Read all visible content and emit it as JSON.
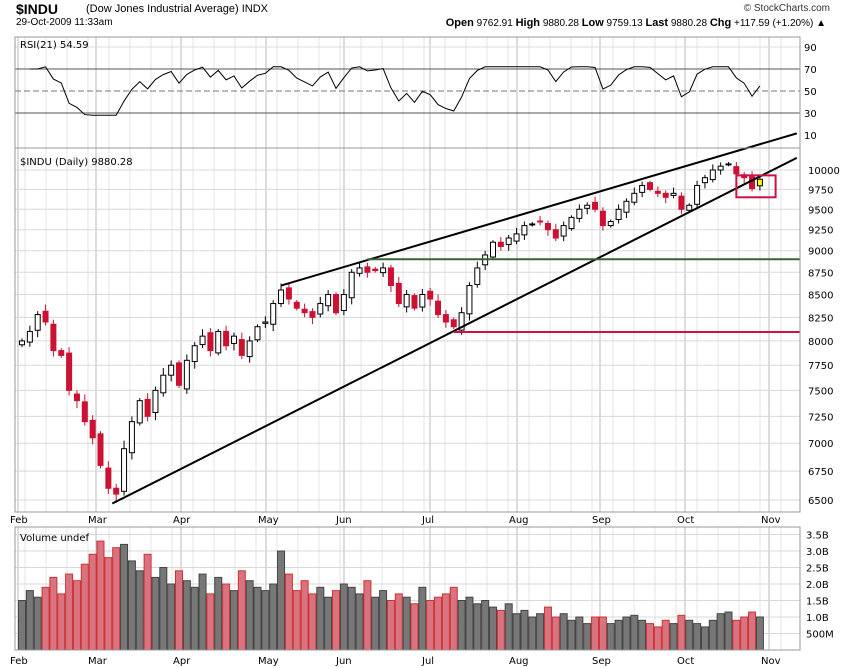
{
  "header": {
    "symbol": "$INDU",
    "name": "(Dow Jones Industrial Average) INDX",
    "brand": "© StockCharts.com",
    "datetime": "29-Oct-2009 11:33am",
    "open_label": "Open",
    "open": "9762.91",
    "high_label": "High",
    "high": "9880.28",
    "low_label": "Low",
    "low": "9759.13",
    "last_label": "Last",
    "last": "9880.28",
    "chg_label": "Chg",
    "chg": "+117.59 (+1.20%)",
    "chg_icon": "up-triangle"
  },
  "colors": {
    "up": "#ffffff",
    "down": "#cc1133",
    "grid": "#d8d8d8",
    "volume_up": "#777777",
    "volume_down": "#d9737f",
    "support": "#336633",
    "resistance": "#cc1144",
    "highlight": "#ffff00"
  },
  "chart_data": [
    {
      "type": "line",
      "title": "RSI(21) 54.59",
      "indicator": "RSI(21)",
      "last_value": 54.59,
      "yticks": [
        "90",
        "70",
        "50",
        "30",
        "10"
      ],
      "ylim": [
        10,
        90
      ]
    },
    {
      "type": "candlestick",
      "title": "$INDU (Daily) 9880.28",
      "scale": "log",
      "ylim": [
        6400,
        10600
      ],
      "yticks": [
        "10000",
        "9750",
        "9500",
        "9250",
        "9000",
        "8750",
        "8500",
        "8250",
        "8000",
        "7750",
        "7500",
        "7250",
        "7000",
        "6750",
        "6500"
      ],
      "xticks": [
        "Feb",
        "Mar",
        "Apr",
        "May",
        "Jun",
        "Jul",
        "Aug",
        "Sep",
        "Oct",
        "Nov"
      ],
      "sampling": "every 2 trading days",
      "closes": [
        8000,
        8100,
        8280,
        8200,
        7900,
        7850,
        7500,
        7400,
        7200,
        7050,
        6800,
        6600,
        6550,
        6950,
        7200,
        7400,
        7250,
        7500,
        7650,
        7750,
        7550,
        7800,
        7950,
        8050,
        7900,
        8100,
        7950,
        8050,
        7850,
        8000,
        8150,
        8200,
        8400,
        8550,
        8450,
        8350,
        8300,
        8250,
        8400,
        8500,
        8300,
        8500,
        8750,
        8800,
        8750,
        8770,
        8800,
        8600,
        8400,
        8500,
        8350,
        8500,
        8450,
        8280,
        8200,
        8150,
        8300,
        8600,
        8800,
        8950,
        9100,
        9050,
        9150,
        9200,
        9300,
        9320,
        9350,
        9250,
        9150,
        9300,
        9400,
        9500,
        9550,
        9500,
        9300,
        9350,
        9500,
        9600,
        9700,
        9800,
        9750,
        9700,
        9650,
        9700,
        9500,
        9550,
        9800,
        9900,
        10000,
        10050,
        10080,
        9950,
        9900,
        9760,
        9880
      ],
      "annotations": {
        "upper_trendline": [
          [
            33,
            8600
          ],
          [
            98.7,
            10490
          ]
        ],
        "lower_trendline": [
          [
            11.5,
            6470
          ],
          [
            98.7,
            10160
          ]
        ],
        "support_line": {
          "from_index": 44,
          "price": 8900
        },
        "red_line": {
          "from_index": 55,
          "price": 8094
        },
        "highlight_box": {
          "from_index": 91,
          "to_index": 96,
          "price_range": [
            9650,
            9930
          ]
        }
      }
    },
    {
      "type": "bar",
      "title": "Volume undef",
      "yticks": [
        "3.5B",
        "3.0B",
        "2.5B",
        "2.0B",
        "1.5B",
        "1.0B",
        "500M"
      ],
      "ylim": [
        0,
        3.8
      ],
      "xticks": [
        "Feb",
        "Mar",
        "Apr",
        "May",
        "Jun",
        "Jul",
        "Aug",
        "Sep",
        "Oct",
        "Nov"
      ],
      "values_billions": [
        1.5,
        1.8,
        1.6,
        1.9,
        2.2,
        1.7,
        2.3,
        2.1,
        2.6,
        2.9,
        3.3,
        2.8,
        3.1,
        3.2,
        2.7,
        2.4,
        2.9,
        2.2,
        2.5,
        2.0,
        2.4,
        2.1,
        1.9,
        2.3,
        1.7,
        2.2,
        2.0,
        1.8,
        2.4,
        2.1,
        1.9,
        1.8,
        2.0,
        3.0,
        2.3,
        1.8,
        2.1,
        1.7,
        1.9,
        1.6,
        1.8,
        2.0,
        1.9,
        1.7,
        2.1,
        1.6,
        1.8,
        1.5,
        1.7,
        1.6,
        1.4,
        1.9,
        1.5,
        1.6,
        1.7,
        1.9,
        1.5,
        1.6,
        1.4,
        1.5,
        1.3,
        1.2,
        1.4,
        1.1,
        1.2,
        1.0,
        1.1,
        1.3,
        1.0,
        1.1,
        0.9,
        1.0,
        0.8,
        1.0,
        1.0,
        0.8,
        0.9,
        1.0,
        1.05,
        0.9,
        0.8,
        0.7,
        0.9,
        0.8,
        1.05,
        0.9,
        0.8,
        0.7,
        0.9,
        1.1,
        1.15,
        0.9,
        1.0,
        1.15,
        1.0
      ]
    }
  ]
}
